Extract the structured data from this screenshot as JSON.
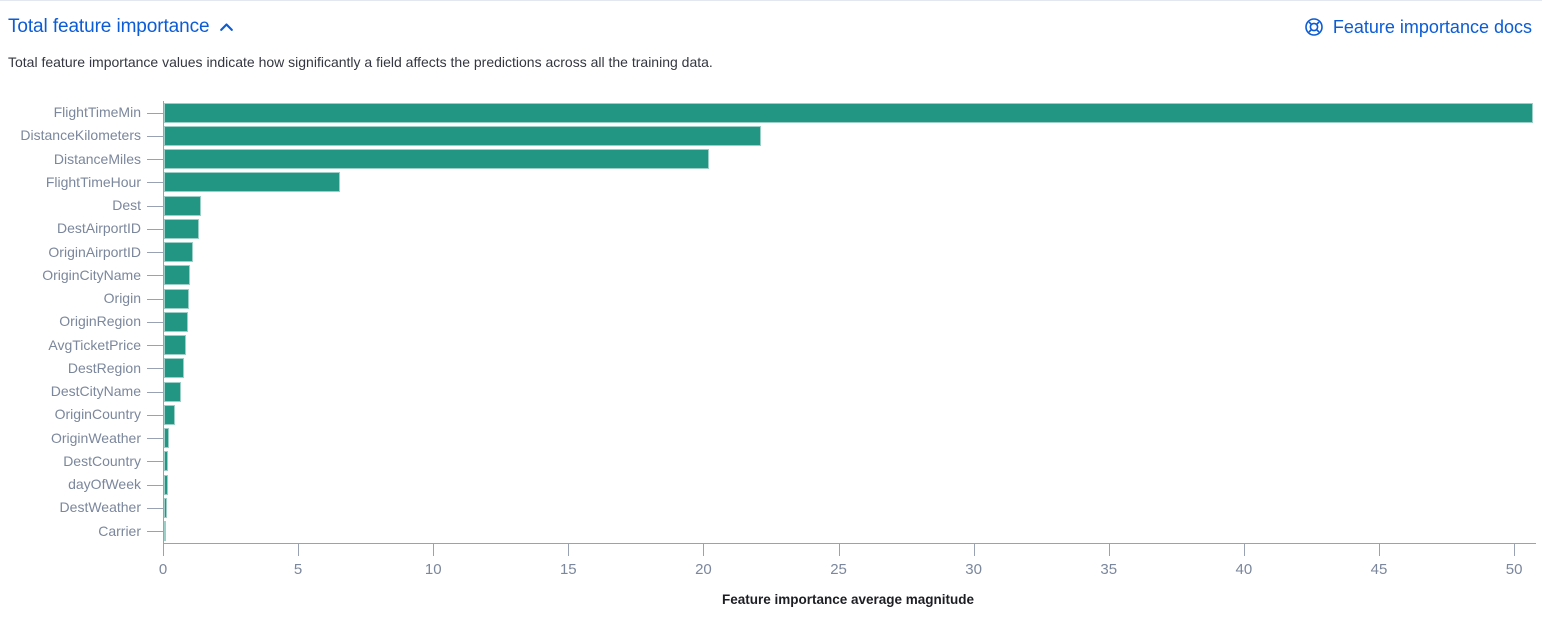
{
  "header": {
    "title": "Total feature importance",
    "collapse_icon": "chevron-up",
    "docs_link_label": "Feature importance docs",
    "docs_icon": "help-lifebuoy"
  },
  "description": "Total feature importance values indicate how significantly a field affects the predictions across all the training data.",
  "colors": {
    "link_blue": "#0b5cd5",
    "bar_teal": "#229683",
    "axis_line": "#98a2b3",
    "axis_label": "#7b879c",
    "body_text": "#343741",
    "axis_title_text": "#1d1e24"
  },
  "chart_data": {
    "type": "bar",
    "orientation": "horizontal",
    "title": "",
    "xlabel": "Feature importance average magnitude",
    "ylabel": "",
    "categories": [
      "FlightTimeMin",
      "DistanceKilometers",
      "DistanceMiles",
      "FlightTimeHour",
      "Dest",
      "DestAirportID",
      "OriginAirportID",
      "OriginCityName",
      "Origin",
      "OriginRegion",
      "AvgTicketPrice",
      "DestRegion",
      "DestCityName",
      "OriginCountry",
      "OriginWeather",
      "DestCountry",
      "dayOfWeek",
      "DestWeather",
      "Carrier"
    ],
    "values": [
      50.7,
      22.1,
      20.2,
      6.5,
      1.37,
      1.3,
      1.08,
      0.96,
      0.93,
      0.88,
      0.82,
      0.74,
      0.63,
      0.41,
      0.19,
      0.15,
      0.14,
      0.11,
      0.04
    ],
    "x_ticks": [
      0,
      5,
      10,
      15,
      20,
      25,
      30,
      35,
      40,
      45,
      50
    ],
    "xlim": [
      0,
      50.7
    ],
    "grid": false,
    "legend": "none"
  }
}
